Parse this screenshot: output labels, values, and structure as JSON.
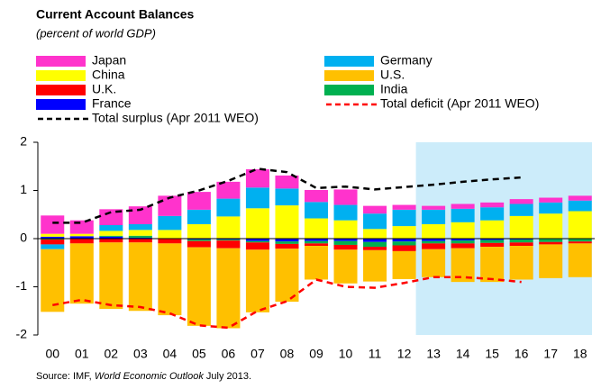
{
  "chart_data": {
    "type": "stacked_bar_line",
    "title": "Current Account Balances",
    "subtitle": "(percent of world GDP)",
    "source": {
      "prefix": "Source: IMF,",
      "italic": "World Economic  Outlook",
      "suffix": "July 2013."
    },
    "categories": [
      "00",
      "01",
      "02",
      "03",
      "04",
      "05",
      "06",
      "07",
      "08",
      "09",
      "10",
      "11",
      "12",
      "13",
      "14",
      "15",
      "16",
      "17",
      "18"
    ],
    "series": [
      {
        "name": "Japan",
        "color": "#ff33cc",
        "values": [
          0.38,
          0.28,
          0.33,
          0.37,
          0.42,
          0.37,
          0.35,
          0.38,
          0.27,
          0.25,
          0.32,
          0.16,
          0.1,
          0.08,
          0.1,
          0.1,
          0.1,
          0.1,
          0.1
        ]
      },
      {
        "name": "Germany",
        "color": "#00b0f0",
        "values": [
          -0.1,
          0,
          0.12,
          0.12,
          0.29,
          0.3,
          0.37,
          0.43,
          0.35,
          0.34,
          0.32,
          0.32,
          0.34,
          0.3,
          0.28,
          0.27,
          0.25,
          0.23,
          0.22
        ]
      },
      {
        "name": "China",
        "color": "#ffff00",
        "values": [
          0.06,
          0.05,
          0.1,
          0.12,
          0.17,
          0.3,
          0.46,
          0.63,
          0.69,
          0.42,
          0.38,
          0.2,
          0.26,
          0.3,
          0.34,
          0.38,
          0.47,
          0.52,
          0.57
        ]
      },
      {
        "name": "U.S.",
        "color": "#ffc000",
        "values": [
          -1.3,
          -1.25,
          -1.38,
          -1.42,
          -1.49,
          -1.63,
          -1.66,
          -1.3,
          -1.1,
          -0.7,
          -0.7,
          -0.65,
          -0.58,
          -0.58,
          -0.7,
          -0.73,
          -0.7,
          -0.7,
          -0.7
        ]
      },
      {
        "name": "U.K.",
        "color": "#ff0000",
        "values": [
          -0.1,
          -0.1,
          -0.08,
          -0.08,
          -0.1,
          -0.13,
          -0.16,
          -0.15,
          -0.1,
          -0.05,
          -0.1,
          -0.07,
          -0.12,
          -0.12,
          -0.1,
          -0.08,
          -0.07,
          -0.05,
          -0.04
        ]
      },
      {
        "name": "India",
        "color": "#00b050",
        "values": [
          -0.02,
          0,
          0.02,
          0.04,
          0,
          -0.03,
          -0.02,
          -0.03,
          -0.05,
          -0.05,
          -0.08,
          -0.1,
          -0.08,
          -0.05,
          -0.06,
          -0.06,
          -0.06,
          -0.06,
          -0.06
        ]
      },
      {
        "name": "France",
        "color": "#0000ff",
        "values": [
          0.04,
          0.05,
          0.04,
          0.02,
          0.01,
          -0.02,
          -0.02,
          -0.05,
          -0.06,
          -0.05,
          -0.05,
          -0.07,
          -0.06,
          -0.05,
          -0.04,
          -0.03,
          -0.02,
          -0.01,
          0
        ]
      }
    ],
    "lines": [
      {
        "name": "Total surplus (Apr 2011 WEO)",
        "color": "#000000",
        "values": [
          0.33,
          0.33,
          0.55,
          0.6,
          0.85,
          1.0,
          1.2,
          1.45,
          1.38,
          1.05,
          1.08,
          1.02,
          1.07,
          1.12,
          1.18,
          1.23,
          1.27,
          null,
          null
        ]
      },
      {
        "name": "Total deficit (Apr 2011 WEO)",
        "color": "#ff0000",
        "values": [
          -1.38,
          -1.27,
          -1.38,
          -1.42,
          -1.55,
          -1.8,
          -1.85,
          -1.5,
          -1.3,
          -0.85,
          -1.0,
          -1.02,
          -0.92,
          -0.8,
          -0.8,
          -0.84,
          -0.9,
          null,
          null
        ]
      }
    ],
    "ylim": [
      -2,
      2
    ],
    "yticks": [
      -2,
      -1,
      0,
      1,
      2
    ],
    "grid": false
  }
}
